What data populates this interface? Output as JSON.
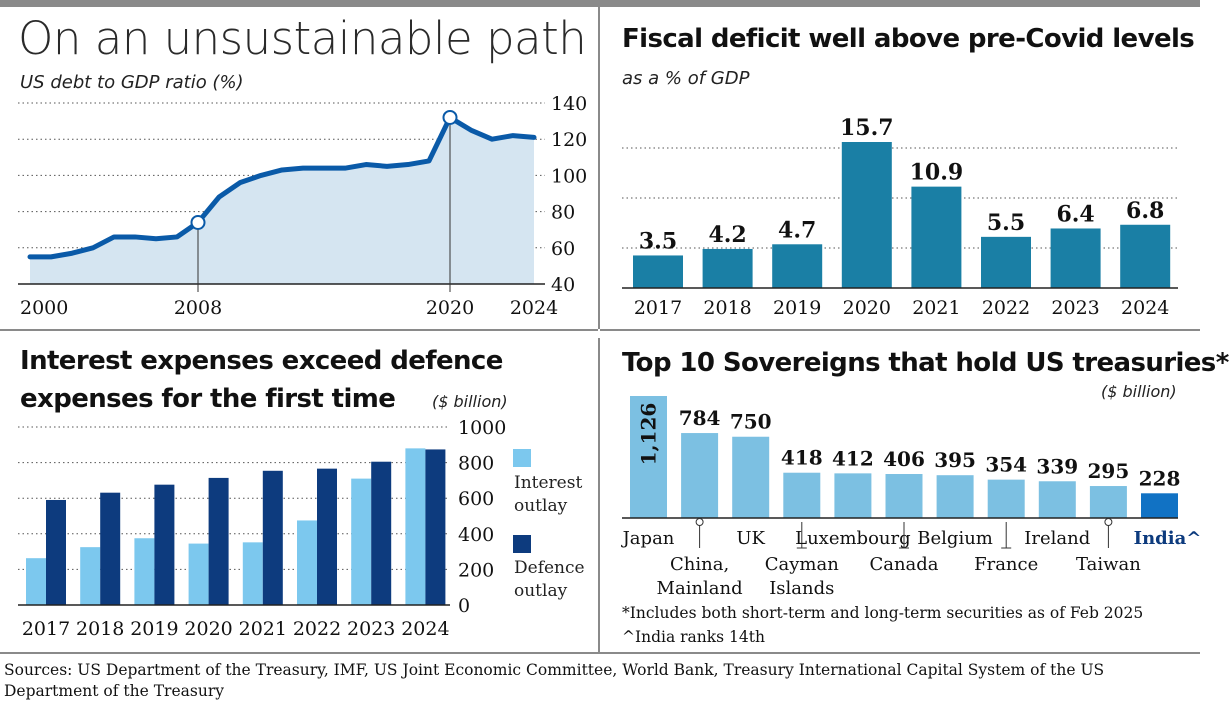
{
  "colors": {
    "line": "#0a5aa8",
    "area": "#d5e5f1",
    "deficit_bar": "#1a7fa5",
    "interest": "#7cc8ee",
    "defence": "#0d3b7e",
    "holdings_bar": "#7cc0e2",
    "india_bar": "#1172c4",
    "rule": "#8a8a8a"
  },
  "panel1": {
    "title": "On an unsustainable path",
    "subtitle": "US debt to GDP ratio (%)"
  },
  "panel2": {
    "title": "Fiscal deficit well above pre-Covid levels",
    "subtitle": "as a % of GDP"
  },
  "panel3": {
    "title_line1": "Interest expenses exceed defence",
    "title_line2": "expenses for the first time",
    "unit": "($ billion)",
    "legend_interest_1": "Interest",
    "legend_interest_2": "outlay",
    "legend_defence_1": "Defence",
    "legend_defence_2": "outlay"
  },
  "panel4": {
    "title": "Top 10 Sovereigns that hold US treasuries*",
    "unit": "($ billion)",
    "note1": "*Includes both short-term and long-term securities as of Feb 2025",
    "note2": "^India ranks 14th"
  },
  "sources": "Sources: US Department of the Treasury, IMF, US Joint Economic Committee, World Bank, Treasury International Capital System of the US Department of the Treasury",
  "chart_data": [
    {
      "type": "area",
      "title": "On an unsustainable path",
      "ylabel": "US debt to GDP ratio (%)",
      "ylim": [
        40,
        140
      ],
      "yticks": [
        40,
        60,
        80,
        100,
        120,
        140
      ],
      "x_tick_labels": [
        "2000",
        "2008",
        "2020",
        "2024"
      ],
      "highlighted_years": [
        2008,
        2020
      ],
      "x": [
        2000,
        2001,
        2002,
        2003,
        2004,
        2005,
        2006,
        2007,
        2008,
        2009,
        2010,
        2011,
        2012,
        2013,
        2014,
        2015,
        2016,
        2017,
        2018,
        2019,
        2020,
        2021,
        2022,
        2023,
        2024
      ],
      "values": [
        55,
        55,
        57,
        60,
        66,
        66,
        65,
        66,
        74,
        88,
        96,
        100,
        103,
        104,
        104,
        104,
        106,
        105,
        106,
        108,
        132,
        125,
        120,
        122,
        121
      ]
    },
    {
      "type": "bar",
      "title": "Fiscal deficit well above pre-Covid levels",
      "ylabel": "as a % of GDP",
      "categories": [
        "2017",
        "2018",
        "2019",
        "2020",
        "2021",
        "2022",
        "2023",
        "2024"
      ],
      "values": [
        3.5,
        4.2,
        4.7,
        15.7,
        10.9,
        5.5,
        6.4,
        6.8
      ],
      "labels": [
        "3.5",
        "4.2",
        "4.7",
        "15.7",
        "10.9",
        "5.5",
        "6.4",
        "6.8"
      ],
      "ylim": [
        0,
        20
      ]
    },
    {
      "type": "bar",
      "title": "Interest expenses exceed defence expenses for the first time",
      "ylabel": "($ billion)",
      "categories": [
        "2017",
        "2018",
        "2019",
        "2020",
        "2021",
        "2022",
        "2023",
        "2024"
      ],
      "ylim": [
        0,
        1000
      ],
      "yticks": [
        0,
        200,
        400,
        600,
        800,
        1000
      ],
      "series": [
        {
          "name": "Interest outlay",
          "values": [
            263,
            325,
            375,
            345,
            352,
            475,
            710,
            880
          ]
        },
        {
          "name": "Defence outlay",
          "values": [
            590,
            631,
            676,
            714,
            754,
            766,
            805,
            874
          ]
        }
      ]
    },
    {
      "type": "bar",
      "title": "Top 10 Sovereigns that hold US treasuries*",
      "ylabel": "($ billion)",
      "categories": [
        "Japan",
        "China, Mainland",
        "UK",
        "Cayman Islands",
        "Luxembourg",
        "Canada",
        "Belgium",
        "France",
        "Ireland",
        "Taiwan",
        "India^"
      ],
      "values": [
        1126,
        784,
        750,
        418,
        412,
        406,
        395,
        354,
        339,
        295,
        228
      ],
      "labels": [
        "1,126",
        "784",
        "750",
        "418",
        "412",
        "406",
        "395",
        "354",
        "339",
        "295",
        "228"
      ],
      "ylim": [
        0,
        1126
      ]
    }
  ]
}
